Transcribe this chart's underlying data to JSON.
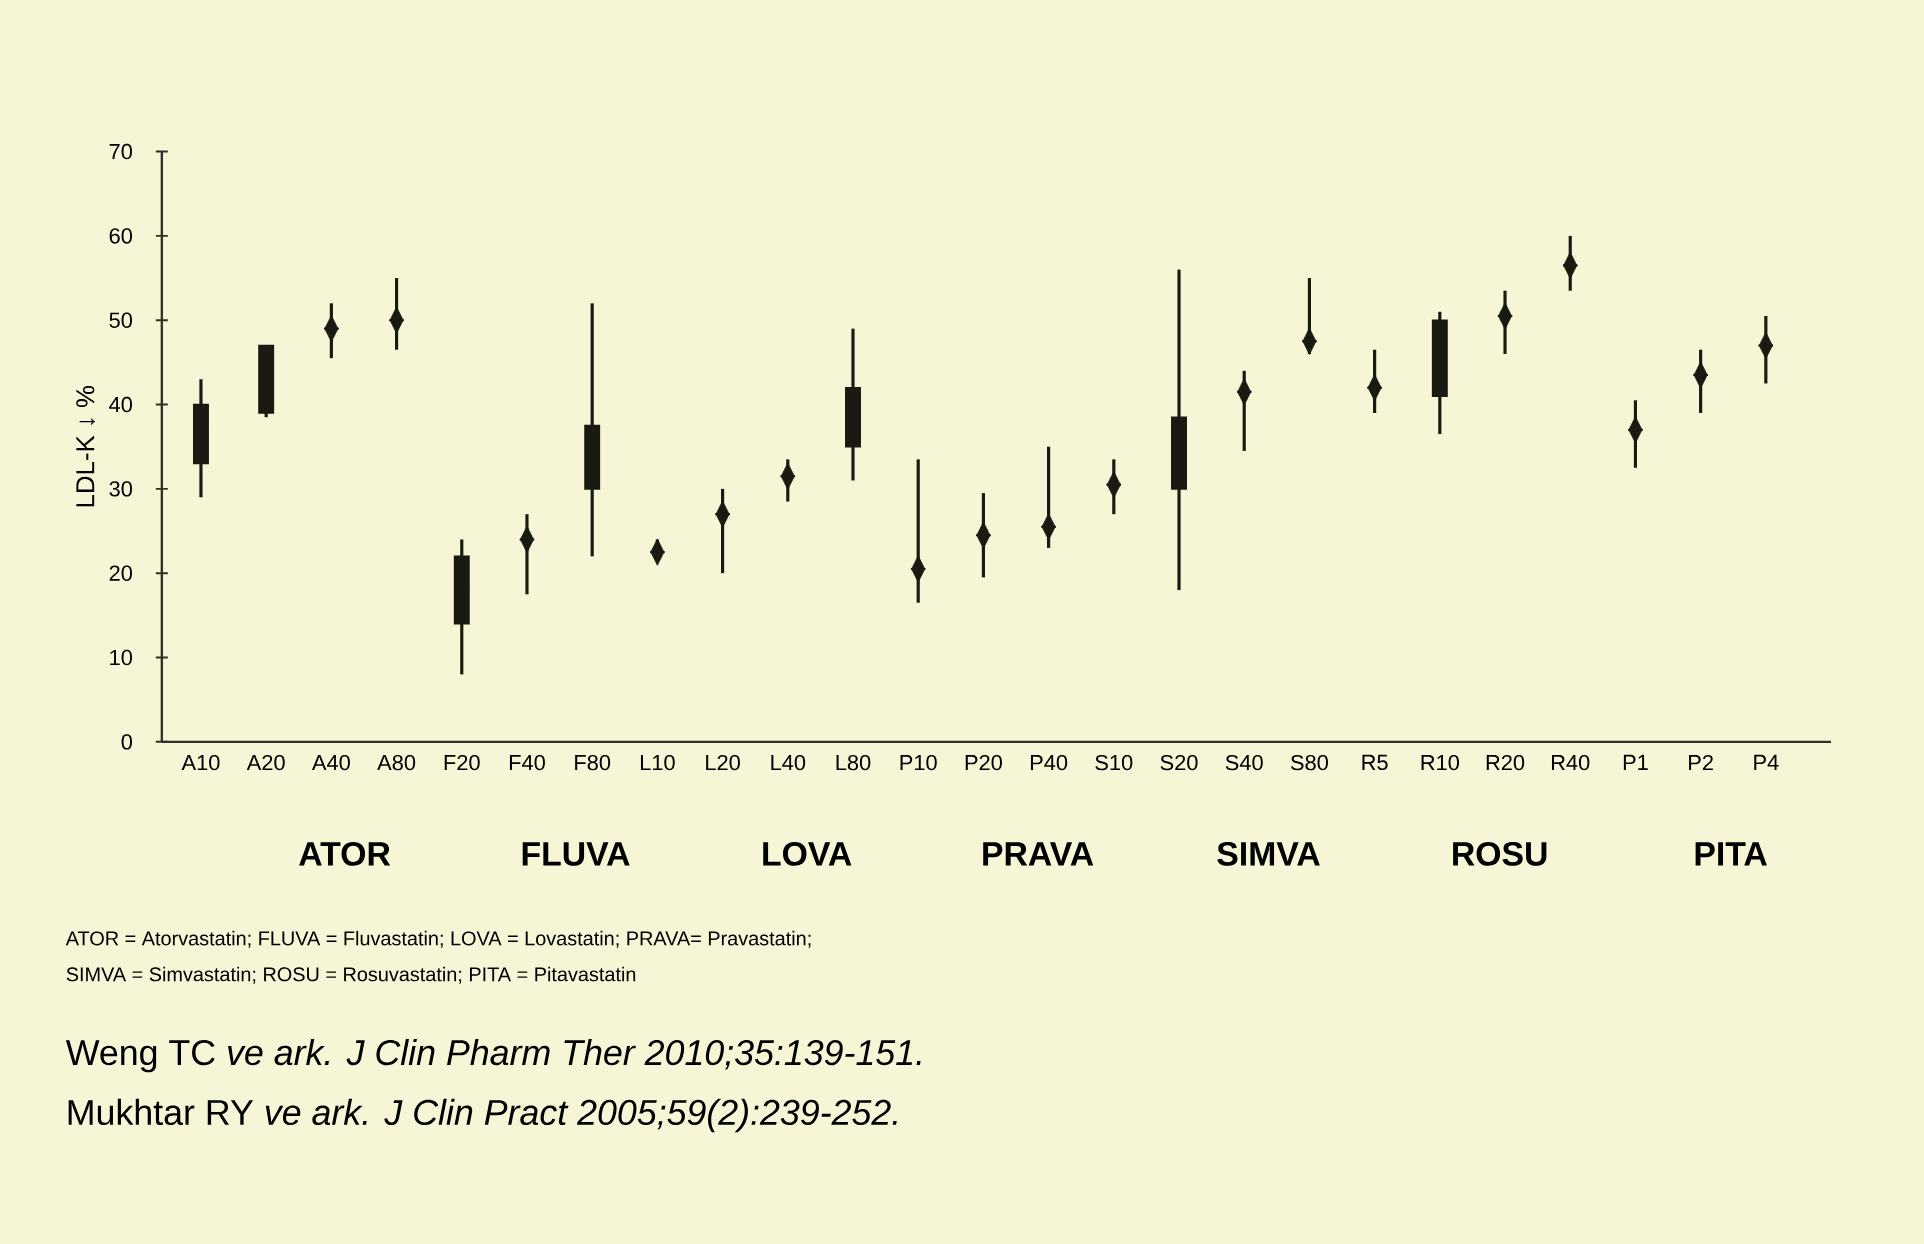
{
  "chart_data": {
    "type": "box",
    "ylabel": "LDL-K ↓ %",
    "ylim": [
      0,
      70
    ],
    "yticks": [
      0,
      10,
      20,
      30,
      40,
      50,
      60,
      70
    ],
    "color": "#1a1a12",
    "marker": "diamond",
    "categories": [
      "A10",
      "A20",
      "A40",
      "A80",
      "F20",
      "F40",
      "F80",
      "L10",
      "L20",
      "L40",
      "L80",
      "P10",
      "P20",
      "P40",
      "S10",
      "S20",
      "S40",
      "S80",
      "R5",
      "R10",
      "R20",
      "R40",
      "P1",
      "P2",
      "P4"
    ],
    "boxes": [
      {
        "low": 29,
        "q1": 33,
        "median": 37,
        "q3": 40,
        "high": 43,
        "mean": 37
      },
      {
        "low": 38.5,
        "q1": 39,
        "median": 43.5,
        "q3": 47,
        "high": 47,
        "mean": 43.5
      },
      {
        "low": 45.5,
        "q1": 49,
        "median": 49,
        "q3": 49,
        "high": 52,
        "mean": 49
      },
      {
        "low": 46.5,
        "q1": 50,
        "median": 50,
        "q3": 50,
        "high": 55,
        "mean": 50
      },
      {
        "low": 8,
        "q1": 14,
        "median": 19,
        "q3": 22,
        "high": 24,
        "mean": 19
      },
      {
        "low": 17.5,
        "q1": 24,
        "median": 24,
        "q3": 24,
        "high": 27,
        "mean": 24
      },
      {
        "low": 22,
        "q1": 30,
        "median": 35,
        "q3": 37.5,
        "high": 52,
        "mean": 35
      },
      {
        "low": 21.5,
        "q1": 22.5,
        "median": 22.5,
        "q3": 22.5,
        "high": 24,
        "mean": 22.5
      },
      {
        "low": 20,
        "q1": 27,
        "median": 27,
        "q3": 27,
        "high": 30,
        "mean": 27
      },
      {
        "low": 28.5,
        "q1": 31.5,
        "median": 31.5,
        "q3": 31.5,
        "high": 33.5,
        "mean": 31.5
      },
      {
        "low": 31,
        "q1": 35,
        "median": 39.5,
        "q3": 42,
        "high": 49,
        "mean": 39.5
      },
      {
        "low": 16.5,
        "q1": 20.5,
        "median": 20.5,
        "q3": 20.5,
        "high": 33.5,
        "mean": 20.5
      },
      {
        "low": 19.5,
        "q1": 24.5,
        "median": 24.5,
        "q3": 24.5,
        "high": 29.5,
        "mean": 24.5
      },
      {
        "low": 23,
        "q1": 25.5,
        "median": 25.5,
        "q3": 25.5,
        "high": 35,
        "mean": 25.5
      },
      {
        "low": 27,
        "q1": 30.5,
        "median": 30.5,
        "q3": 30.5,
        "high": 33.5,
        "mean": 30.5
      },
      {
        "low": 18,
        "q1": 30,
        "median": 35,
        "q3": 38.5,
        "high": 56,
        "mean": 35
      },
      {
        "low": 34.5,
        "q1": 41.5,
        "median": 41.5,
        "q3": 41.5,
        "high": 44,
        "mean": 41.5
      },
      {
        "low": 46,
        "q1": 47.5,
        "median": 47.5,
        "q3": 47.5,
        "high": 55,
        "mean": 47.5
      },
      {
        "low": 39,
        "q1": 42,
        "median": 42,
        "q3": 42,
        "high": 46.5,
        "mean": 42
      },
      {
        "low": 36.5,
        "q1": 41,
        "median": 46,
        "q3": 50,
        "high": 51,
        "mean": 46
      },
      {
        "low": 46,
        "q1": 50.5,
        "median": 50.5,
        "q3": 50.5,
        "high": 53.5,
        "mean": 50.5
      },
      {
        "low": 53.5,
        "q1": 56.5,
        "median": 56.5,
        "q3": 56.5,
        "high": 60,
        "mean": 56.5
      },
      {
        "low": 32.5,
        "q1": 37,
        "median": 37,
        "q3": 37,
        "high": 40.5,
        "mean": 37
      },
      {
        "low": 39,
        "q1": 43.5,
        "median": 43.5,
        "q3": 43.5,
        "high": 46.5,
        "mean": 43.5
      },
      {
        "low": 42.5,
        "q1": 47,
        "median": 47,
        "q3": 47,
        "high": 50.5,
        "mean": 47
      }
    ],
    "annotations": [
      "ATOR",
      "FLUVA",
      "LOVA",
      "PRAVA",
      "SIMVA",
      "ROSU",
      "PITA",
      "ATOR = Atorvastatin; FLUVA = Fluvastatin; LOVA = Lovastatin; PRAVA= Pravastatin;",
      "SIMVA = Simvastatin; ROSU = Rosuvastatin; PITA = Pitavastatin",
      "Weng TC *ve ark. J Clin Pharm Ther 2010;35:139-151.*",
      "Mukhtar RY *ve ark. J Clin Pract 2005;59(2):239-252.*"
    ]
  }
}
